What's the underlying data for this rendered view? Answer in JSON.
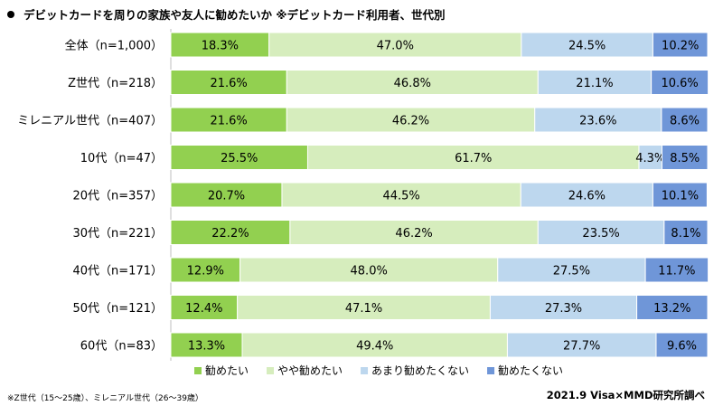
{
  "title": "デビットカードを周りの家族や友人に勧めたいか ※デビットカード利用者、世代別",
  "footnote": "※Z世代（15～25歳）、ミレニアル世代（26～39歳）",
  "source": "2021.9 Visa×MMD研究所調べ",
  "chart_data": {
    "type": "bar",
    "orientation": "horizontal",
    "stacked": true,
    "percent_stacked": true,
    "categories": [
      "全体（n=1,000）",
      "Z世代（n=218）",
      "ミレニアル世代（n=407）",
      "10代（n=47）",
      "20代（n=357）",
      "30代（n=221）",
      "40代（n=171）",
      "50代（n=121）",
      "60代（n=83）"
    ],
    "series": [
      {
        "name": "勧めたい",
        "color": "#92d050",
        "values": [
          18.3,
          21.6,
          21.6,
          25.5,
          20.7,
          22.2,
          12.9,
          12.4,
          13.3
        ]
      },
      {
        "name": "やや勧めたい",
        "color": "#d6edbd",
        "values": [
          47.0,
          46.8,
          46.2,
          61.7,
          44.5,
          46.2,
          48.0,
          47.1,
          49.4
        ]
      },
      {
        "name": "あまり勧めたくない",
        "color": "#bdd7ee",
        "values": [
          24.5,
          21.1,
          23.6,
          4.3,
          24.6,
          23.5,
          27.5,
          27.3,
          27.7
        ]
      },
      {
        "name": "勧めたくない",
        "color": "#6f96d8",
        "values": [
          10.2,
          10.6,
          8.6,
          8.5,
          10.1,
          8.1,
          11.7,
          13.2,
          9.6
        ]
      }
    ],
    "value_suffix": "%",
    "xlim": [
      0,
      100
    ],
    "legend_position": "bottom",
    "grid": false
  }
}
